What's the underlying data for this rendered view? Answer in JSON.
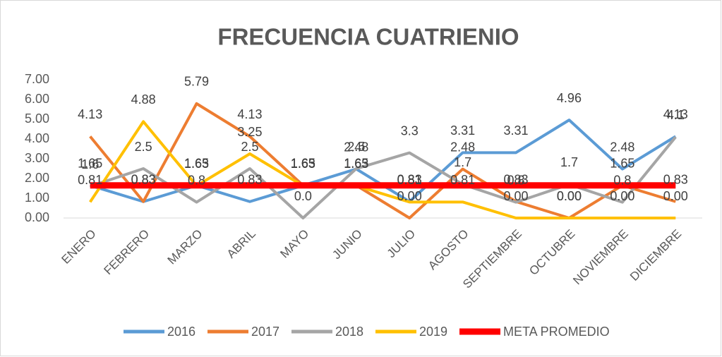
{
  "chart_data": {
    "type": "line",
    "title": "FRECUENCIA CUATRIENIO",
    "categories": [
      "ENERO",
      "FEBRERO",
      "MARZO",
      "ABRIL",
      "MAYO",
      "JUNIO",
      "JULIO",
      "AGOSTO",
      "SEPTIEMBRE",
      "OCTUBRE",
      "NOVIEMBRE",
      "DICIEMBRE"
    ],
    "ylim": [
      0,
      7
    ],
    "yticks": [
      {
        "value": 0,
        "label": "0.00"
      },
      {
        "value": 1,
        "label": "1.00"
      },
      {
        "value": 2,
        "label": "2.00"
      },
      {
        "value": 3,
        "label": "3.00"
      },
      {
        "value": 4,
        "label": "4.00"
      },
      {
        "value": 5,
        "label": "5.00"
      },
      {
        "value": 6,
        "label": "6.00"
      },
      {
        "value": 7,
        "label": "7.00"
      }
    ],
    "grid": false,
    "legend": "bottom",
    "series": [
      {
        "name": "2016",
        "color": "#5b9bd5",
        "values": [
          1.65,
          0.83,
          1.65,
          0.83,
          1.65,
          2.48,
          0.83,
          3.31,
          3.31,
          4.96,
          2.48,
          4.13
        ],
        "value_labels": [
          "1.65",
          "0.83",
          "1.65",
          "0.83",
          "1.65",
          "2.48",
          "0.83",
          "3.31",
          "3.31",
          "4.96",
          "2.48",
          "4.13"
        ]
      },
      {
        "name": "2017",
        "color": "#ed7d31",
        "values": [
          4.13,
          0.83,
          5.79,
          4.13,
          1.65,
          1.65,
          0,
          2.48,
          0.83,
          0,
          1.65,
          0.83
        ],
        "value_labels": [
          "4.13",
          "0.83",
          "5.79",
          "4.13",
          "1.65",
          "1.65",
          "0.00",
          "2.48",
          "0.83",
          "0.00",
          "1.65",
          "0.83"
        ]
      },
      {
        "name": "2018",
        "color": "#a5a5a5",
        "values": [
          1.6,
          2.5,
          0.8,
          2.5,
          0,
          2.5,
          3.3,
          1.7,
          0.8,
          1.7,
          0.8,
          4.1
        ],
        "value_labels": [
          "1.6",
          "2.5",
          "0.8",
          "2.5",
          "0.0",
          "2.5",
          "3.3",
          "1.7",
          "0.8",
          "1.7",
          "0.8",
          "4.1"
        ]
      },
      {
        "name": "2019",
        "color": "#ffc000",
        "values": [
          0.81,
          4.88,
          1.63,
          3.25,
          1.63,
          1.63,
          0.81,
          0.81,
          0,
          0,
          0,
          0
        ],
        "value_labels": [
          "0.81",
          "4.88",
          "1.63",
          "3.25",
          "1.63",
          "1.63",
          "0.81",
          "0.81",
          "0.00",
          "0.00",
          "0.00",
          "0.00"
        ]
      },
      {
        "name": "META PROMEDIO",
        "color": "#ff0000",
        "values": [
          1.65,
          1.65,
          1.65,
          1.65,
          1.65,
          1.65,
          1.65,
          1.65,
          1.65,
          1.65,
          1.65,
          1.65
        ]
      }
    ]
  }
}
